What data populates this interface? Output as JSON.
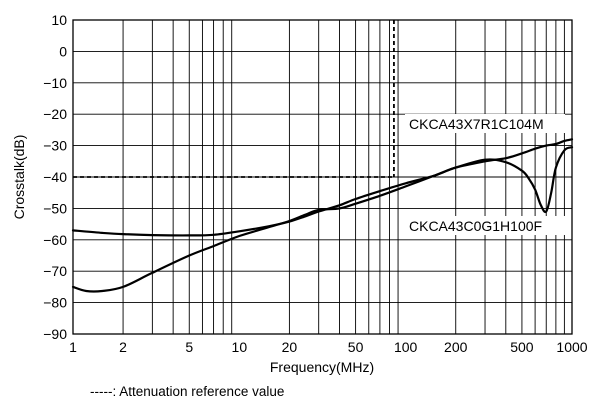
{
  "chart_data": {
    "type": "line",
    "xscale": "log",
    "xlim": [
      1,
      1000
    ],
    "ylim": [
      -90,
      10
    ],
    "xlabel": "Frequency(MHz)",
    "ylabel": "Crosstalk(dB)",
    "title": "",
    "grid": true,
    "x_ticks": [
      1,
      2,
      5,
      10,
      20,
      50,
      100,
      200,
      500,
      1000
    ],
    "y_ticks": [
      10,
      0,
      -10,
      -20,
      -30,
      -40,
      -50,
      -60,
      -70,
      -80,
      -90
    ],
    "series": [
      {
        "name": "CKCA43X7R1C104M",
        "x": [
          1,
          1.5,
          2,
          3,
          5,
          7,
          10,
          15,
          20,
          25,
          30,
          40,
          50,
          70,
          100,
          150,
          200,
          300,
          400,
          500,
          600,
          700,
          800,
          900,
          1000
        ],
        "y": [
          -57,
          -57.8,
          -58.2,
          -58.5,
          -58.6,
          -58.4,
          -57.3,
          -55.7,
          -54.2,
          -52.5,
          -51,
          -49,
          -47,
          -44.5,
          -42,
          -39.5,
          -37,
          -35,
          -34,
          -32.5,
          -31,
          -30,
          -29.5,
          -28.5,
          -28
        ]
      },
      {
        "name": "CKCA43C0G1H100F",
        "x": [
          1,
          1.2,
          1.5,
          2,
          3,
          5,
          7,
          10,
          15,
          20,
          25,
          30,
          40,
          50,
          70,
          100,
          150,
          200,
          300,
          400,
          500,
          550,
          600,
          650,
          700,
          750,
          800,
          900,
          1000
        ],
        "y": [
          -75,
          -76.3,
          -76.3,
          -75,
          -70.5,
          -65,
          -62,
          -58.8,
          -56,
          -54,
          -52,
          -50.5,
          -50,
          -48.5,
          -46,
          -43,
          -39.5,
          -37,
          -34.5,
          -35.3,
          -38,
          -40.5,
          -44,
          -49,
          -51,
          -45,
          -37,
          -31.5,
          -30.5
        ]
      }
    ],
    "reference": {
      "x": 85,
      "y": -40
    },
    "annotations": {
      "series1_label": "CKCA43X7R1C104M",
      "series2_label": "CKCA43C0G1H100F"
    },
    "legend_note": "-----: Attenuation reference value"
  }
}
